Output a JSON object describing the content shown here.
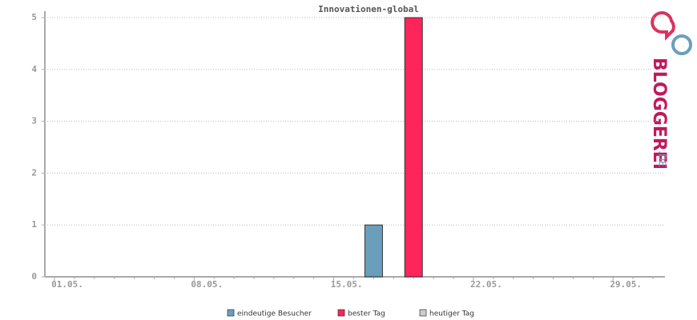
{
  "chart_data": {
    "type": "bar",
    "title": "Innovationen-global",
    "categories": [
      "01.05.",
      null,
      null,
      null,
      null,
      null,
      null,
      "08.05.",
      null,
      null,
      null,
      null,
      null,
      null,
      "15.05.",
      null,
      null,
      null,
      null,
      null,
      null,
      "22.05.",
      null,
      null,
      null,
      null,
      null,
      null,
      "29.05.",
      null,
      null
    ],
    "series": [
      {
        "name": "eindeutige Besucher",
        "color": "#6a9fbc",
        "values": [
          null,
          null,
          null,
          null,
          null,
          null,
          null,
          null,
          null,
          null,
          null,
          null,
          null,
          null,
          null,
          null,
          1,
          null,
          null,
          null,
          null,
          null,
          null,
          null,
          null,
          null,
          null,
          null,
          null,
          null,
          null
        ]
      },
      {
        "name": "bester Tag",
        "color": "#ff2459",
        "values": [
          null,
          null,
          null,
          null,
          null,
          null,
          null,
          null,
          null,
          null,
          null,
          null,
          null,
          null,
          null,
          null,
          null,
          null,
          5,
          null,
          null,
          null,
          null,
          null,
          null,
          null,
          null,
          null,
          null,
          null,
          null
        ]
      },
      {
        "name": "heutiger Tag",
        "color": "#cccccc",
        "values": [
          null,
          null,
          null,
          null,
          null,
          null,
          null,
          null,
          null,
          null,
          null,
          null,
          null,
          null,
          null,
          null,
          null,
          null,
          null,
          null,
          null,
          null,
          null,
          null,
          null,
          null,
          null,
          null,
          null,
          null,
          null
        ]
      }
    ],
    "ylim": [
      0,
      5
    ],
    "yticks": [
      0,
      1,
      2,
      3,
      4,
      5
    ],
    "grid": true,
    "logo": {
      "main": "BLOGGEREI",
      "suffix": ".DE"
    }
  }
}
